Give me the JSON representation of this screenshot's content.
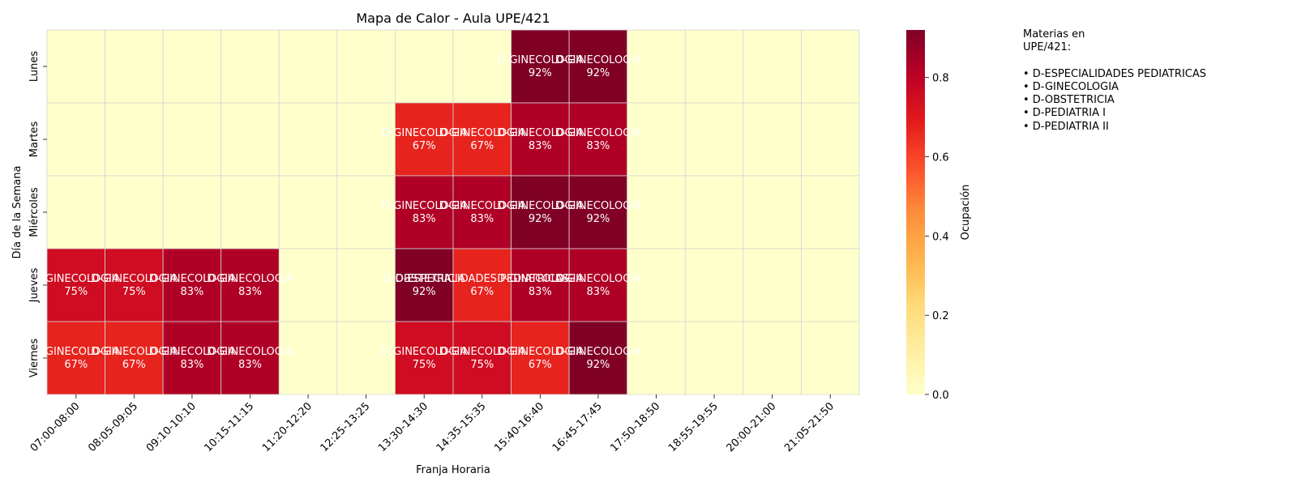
{
  "chart_data": {
    "type": "heatmap",
    "title": "Mapa de Calor - Aula UPE/421",
    "xlabel": "Franja Horaria",
    "ylabel": "Día de la Semana",
    "x_categories": [
      "07:00-08:00",
      "08:05-09:05",
      "09:10-10:10",
      "10:15-11:15",
      "11:20-12:20",
      "12:25-13:25",
      "13:30-14:30",
      "14:35-15:35",
      "15:40-16:40",
      "16:45-17:45",
      "17:50-18:50",
      "18:55-19:55",
      "20:00-21:00",
      "21:05-21:50"
    ],
    "y_categories": [
      "Lunes",
      "Martes",
      "Miércoles",
      "Jueves",
      "Viernes"
    ],
    "values": [
      [
        0,
        0,
        0,
        0,
        0,
        0,
        0,
        0,
        0.92,
        0.92,
        0,
        0,
        0,
        0
      ],
      [
        0,
        0,
        0,
        0,
        0,
        0,
        0.67,
        0.67,
        0.83,
        0.83,
        0,
        0,
        0,
        0
      ],
      [
        0,
        0,
        0,
        0,
        0,
        0,
        0.83,
        0.83,
        0.92,
        0.92,
        0,
        0,
        0,
        0
      ],
      [
        0.75,
        0.75,
        0.83,
        0.83,
        0,
        0,
        0.92,
        0.67,
        0.83,
        0.83,
        0,
        0,
        0,
        0
      ],
      [
        0.67,
        0.67,
        0.83,
        0.83,
        0,
        0,
        0.75,
        0.75,
        0.67,
        0.92,
        0,
        0,
        0,
        0
      ]
    ],
    "cell_labels": [
      [
        "",
        "",
        "",
        "",
        "",
        "",
        "",
        "",
        "D-GINECOLOGIA\n92%",
        "D-GINECOLOGIA\n92%",
        "",
        "",
        "",
        ""
      ],
      [
        "",
        "",
        "",
        "",
        "",
        "",
        "D-GINECOLOGIA\n67%",
        "D-GINECOLOGIA\n67%",
        "D-GINECOLOGIA\n83%",
        "D-GINECOLOGIA\n83%",
        "",
        "",
        "",
        ""
      ],
      [
        "",
        "",
        "",
        "",
        "",
        "",
        "D-GINECOLOGIA\n83%",
        "D-GINECOLOGIA\n83%",
        "D-GINECOLOGIA\n92%",
        "D-GINECOLOGIA\n92%",
        "",
        "",
        "",
        ""
      ],
      [
        "D-GINECOLOGIA\n75%",
        "D-GINECOLOGIA\n75%",
        "D-GINECOLOGIA\n83%",
        "D-GINECOLOGIA\n83%",
        "",
        "",
        "D-OBSTETRICIA\n92%",
        "D-ESPECIALIDADES PEDIATRICAS\n67%",
        "D-GINECOLOGIA\n83%",
        "D-GINECOLOGIA\n83%",
        "",
        "",
        "",
        ""
      ],
      [
        "D-GINECOLOGIA\n67%",
        "D-GINECOLOGIA\n67%",
        "D-GINECOLOGIA\n83%",
        "D-GINECOLOGIA\n83%",
        "",
        "",
        "D-GINECOLOGIA\n75%",
        "D-GINECOLOGIA\n75%",
        "D-GINECOLOGIA\n67%",
        "D-GINECOLOGIA\n92%",
        "",
        "",
        "",
        ""
      ]
    ],
    "colorbar": {
      "label": "Ocupación",
      "range": [
        0,
        0.92
      ],
      "ticks": [
        0.0,
        0.2,
        0.4,
        0.6,
        0.8
      ],
      "tick_labels": [
        "0.0",
        "0.2",
        "0.4",
        "0.6",
        "0.8"
      ],
      "colormap": "YlOrRd"
    }
  },
  "legend": {
    "lines": [
      "Materias en",
      "UPE/421:",
      "",
      "• D-ESPECIALIDADES PEDIATRICAS",
      "• D-GINECOLOGIA",
      "• D-OBSTETRICIA",
      "• D-PEDIATRIA I",
      "• D-PEDIATRIA II"
    ]
  }
}
